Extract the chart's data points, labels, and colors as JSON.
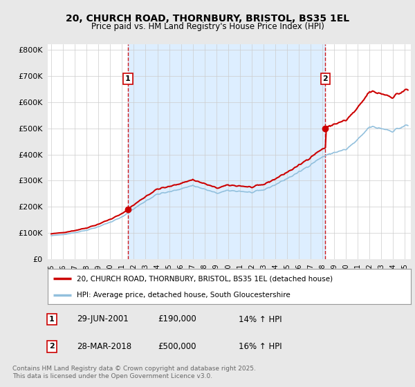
{
  "title_line1": "20, CHURCH ROAD, THORNBURY, BRISTOL, BS35 1EL",
  "title_line2": "Price paid vs. HM Land Registry's House Price Index (HPI)",
  "legend_line1": "20, CHURCH ROAD, THORNBURY, BRISTOL, BS35 1EL (detached house)",
  "legend_line2": "HPI: Average price, detached house, South Gloucestershire",
  "footnote": "Contains HM Land Registry data © Crown copyright and database right 2025.\nThis data is licensed under the Open Government Licence v3.0.",
  "sale1_label": "1",
  "sale1_date": "29-JUN-2001",
  "sale1_price": "£190,000",
  "sale1_hpi": "14% ↑ HPI",
  "sale1_year": 2001.5,
  "sale1_value": 190000,
  "sale2_label": "2",
  "sale2_date": "28-MAR-2018",
  "sale2_price": "£500,000",
  "sale2_hpi": "16% ↑ HPI",
  "sale2_year": 2018.25,
  "sale2_value": 500000,
  "hpi_color": "#92c0dd",
  "price_color": "#cc0000",
  "marker_color": "#cc0000",
  "vline_color": "#cc0000",
  "background_color": "#e8e8e8",
  "plot_bg_color": "#ffffff",
  "shade_color": "#ddeeff",
  "ylim": [
    0,
    820000
  ],
  "yticks": [
    0,
    100000,
    200000,
    300000,
    400000,
    500000,
    600000,
    700000,
    800000
  ],
  "ytick_labels": [
    "£0",
    "£100K",
    "£200K",
    "£300K",
    "£400K",
    "£500K",
    "£600K",
    "£700K",
    "£800K"
  ],
  "xlim_start": 1994.7,
  "xlim_end": 2025.5
}
